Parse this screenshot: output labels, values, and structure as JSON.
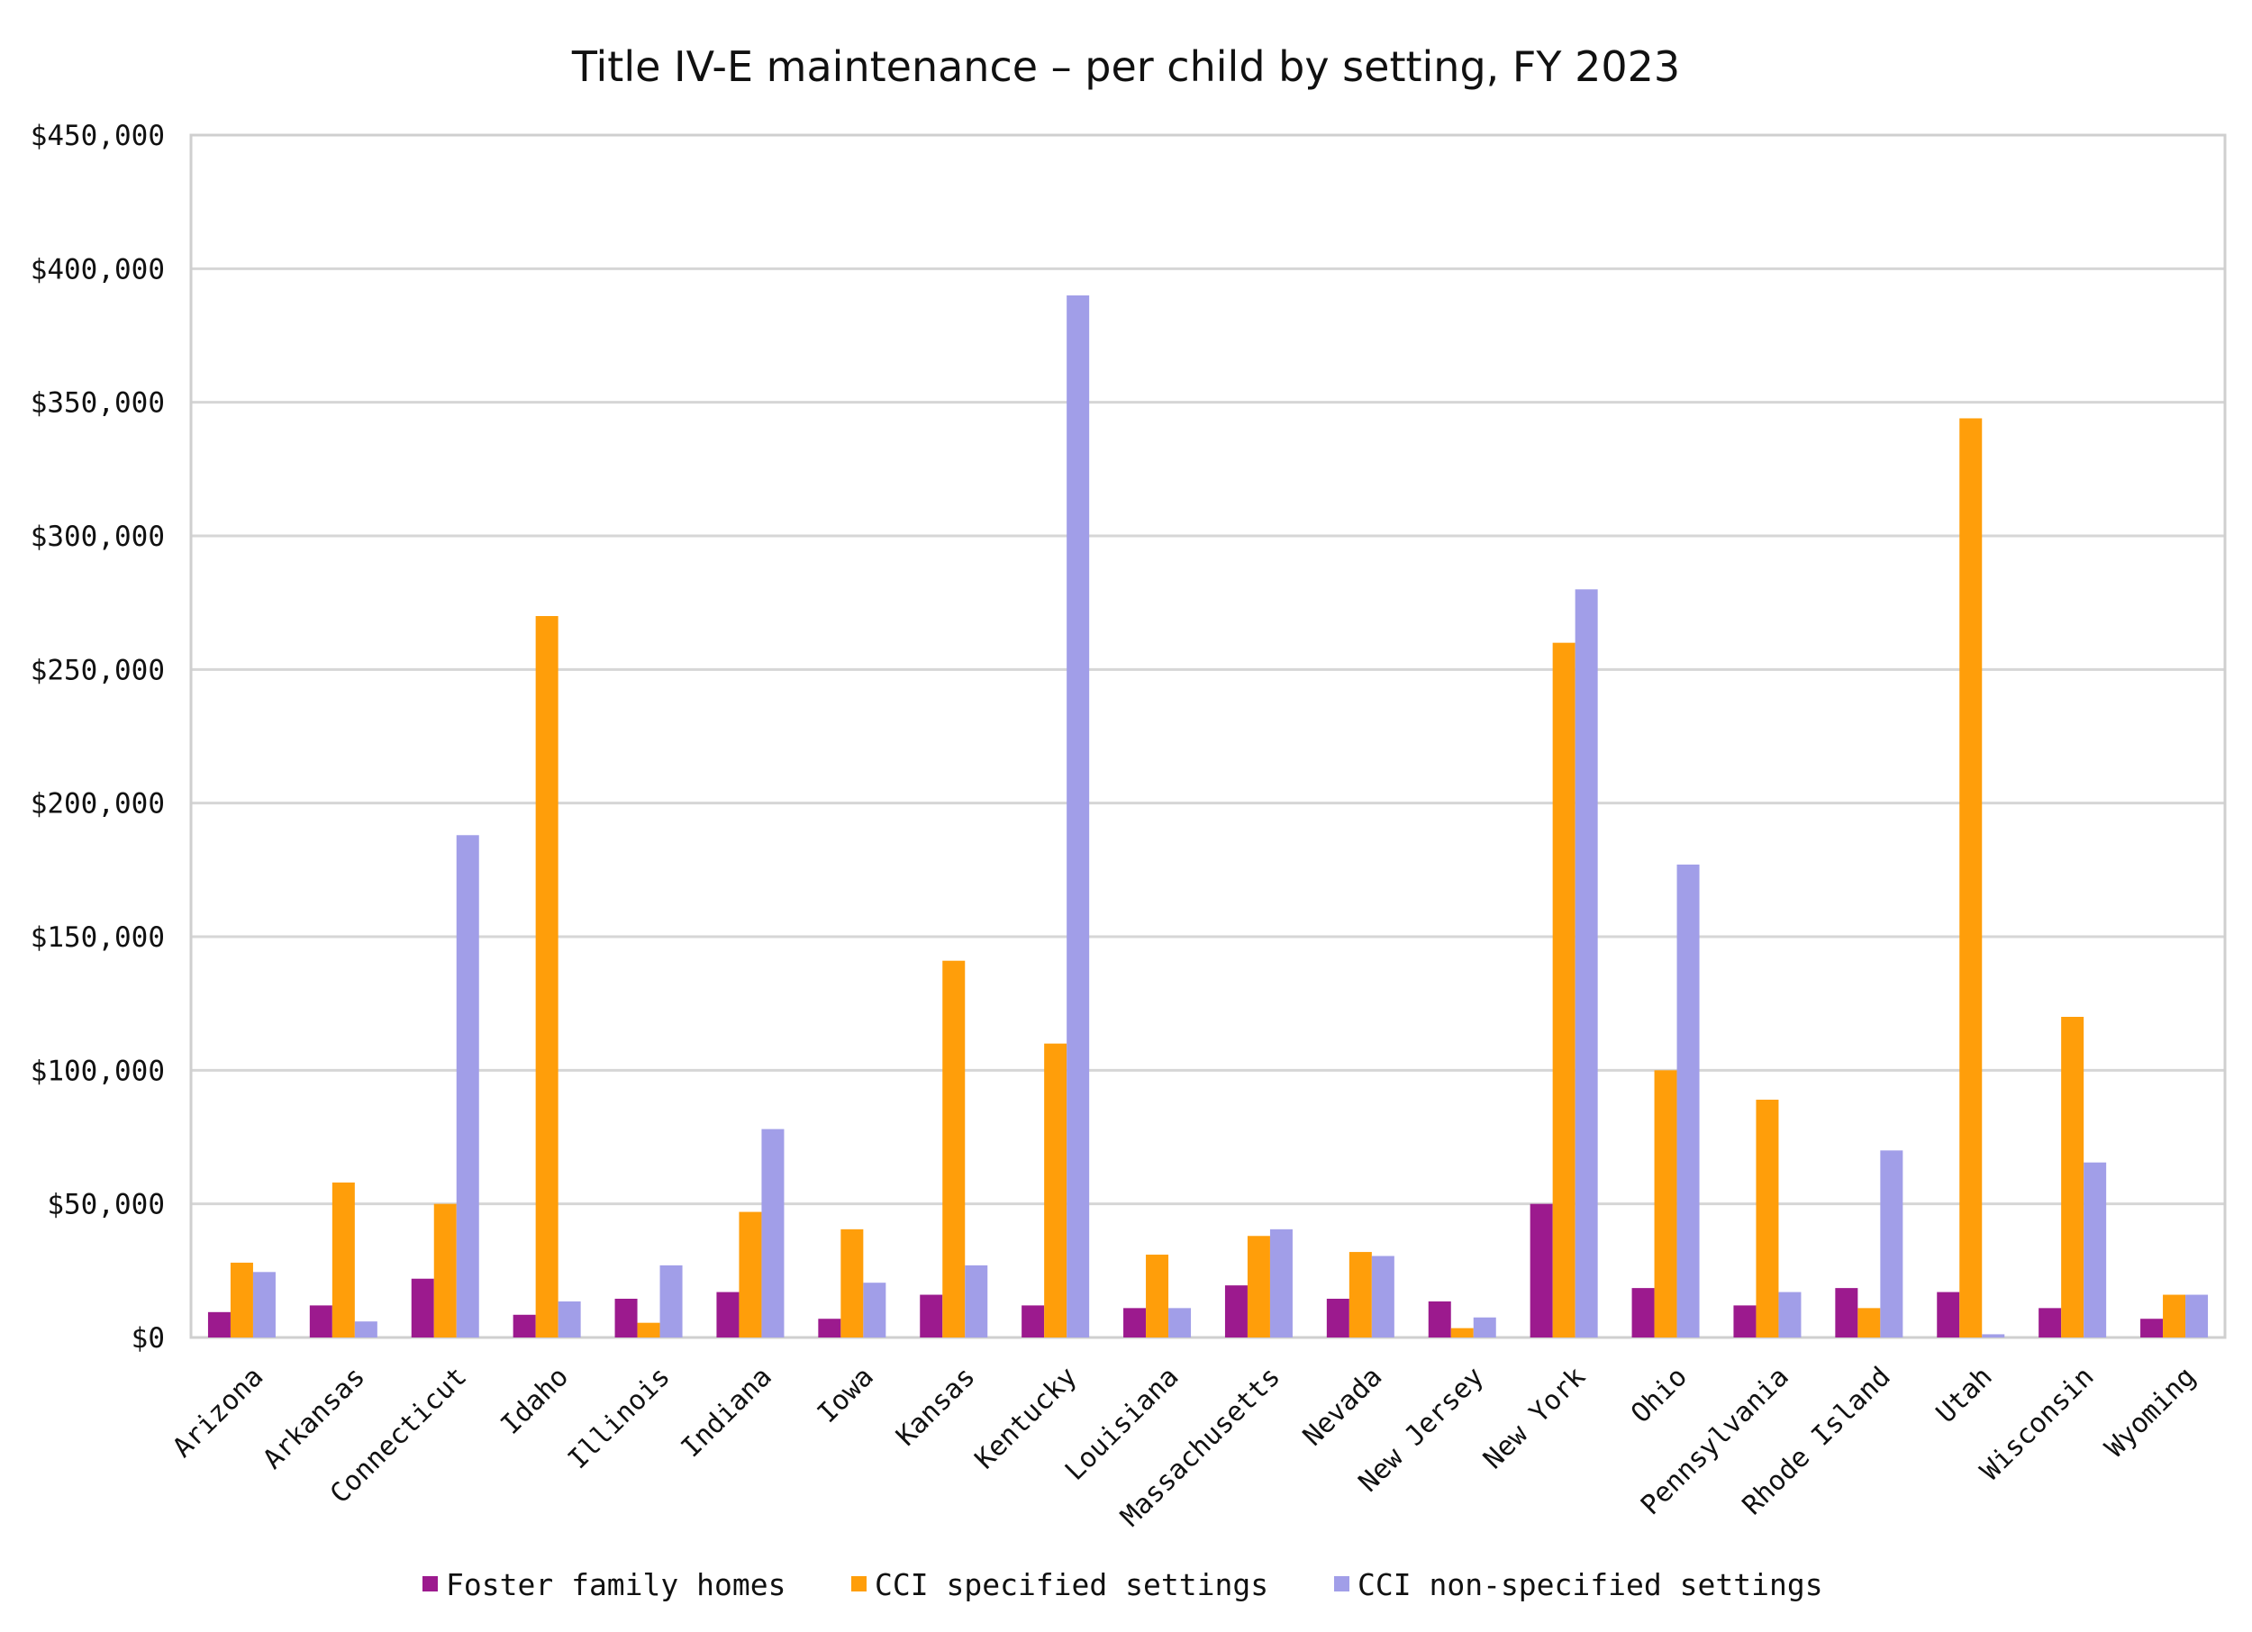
{
  "chart_data": {
    "type": "bar",
    "title": "Title IV-E maintenance – per child by setting, FY 2023",
    "xlabel": "",
    "ylabel": "",
    "ylim": [
      0,
      450000
    ],
    "yticks": [
      0,
      50000,
      100000,
      150000,
      200000,
      250000,
      300000,
      350000,
      400000,
      450000
    ],
    "ytick_labels": [
      "$0",
      "$50,000",
      "$100,000",
      "$150,000",
      "$200,000",
      "$250,000",
      "$300,000",
      "$350,000",
      "$400,000",
      "$450,000"
    ],
    "grid": true,
    "legend_position": "bottom",
    "categories": [
      "Arizona",
      "Arkansas",
      "Connecticut",
      "Idaho",
      "Illinois",
      "Indiana",
      "Iowa",
      "Kansas",
      "Kentucky",
      "Louisiana",
      "Massachusetts",
      "Nevada",
      "New Jersey",
      "New York",
      "Ohio",
      "Pennsylvania",
      "Rhode Island",
      "Utah",
      "Wisconsin",
      "Wyoming"
    ],
    "series": [
      {
        "name": "Foster family homes",
        "color": "#9c1a8e",
        "values": [
          9500,
          12000,
          22000,
          8500,
          14500,
          17000,
          7000,
          16000,
          12000,
          11000,
          19500,
          14500,
          13500,
          50000,
          18500,
          12000,
          18500,
          17000,
          11000,
          7000
        ]
      },
      {
        "name": "CCI specified settings",
        "color": "#ff9e0a",
        "values": [
          28000,
          58000,
          50000,
          270000,
          5500,
          47000,
          40500,
          141000,
          110000,
          31000,
          38000,
          32000,
          3500,
          260000,
          100000,
          89000,
          11000,
          344000,
          120000,
          16000
        ]
      },
      {
        "name": "CCI non-specified settings",
        "color": "#a19ee8",
        "values": [
          24500,
          6000,
          188000,
          13500,
          27000,
          78000,
          20500,
          27000,
          390000,
          11000,
          40500,
          30500,
          7500,
          280000,
          177000,
          17000,
          70000,
          1200,
          65500,
          16000
        ]
      }
    ]
  }
}
